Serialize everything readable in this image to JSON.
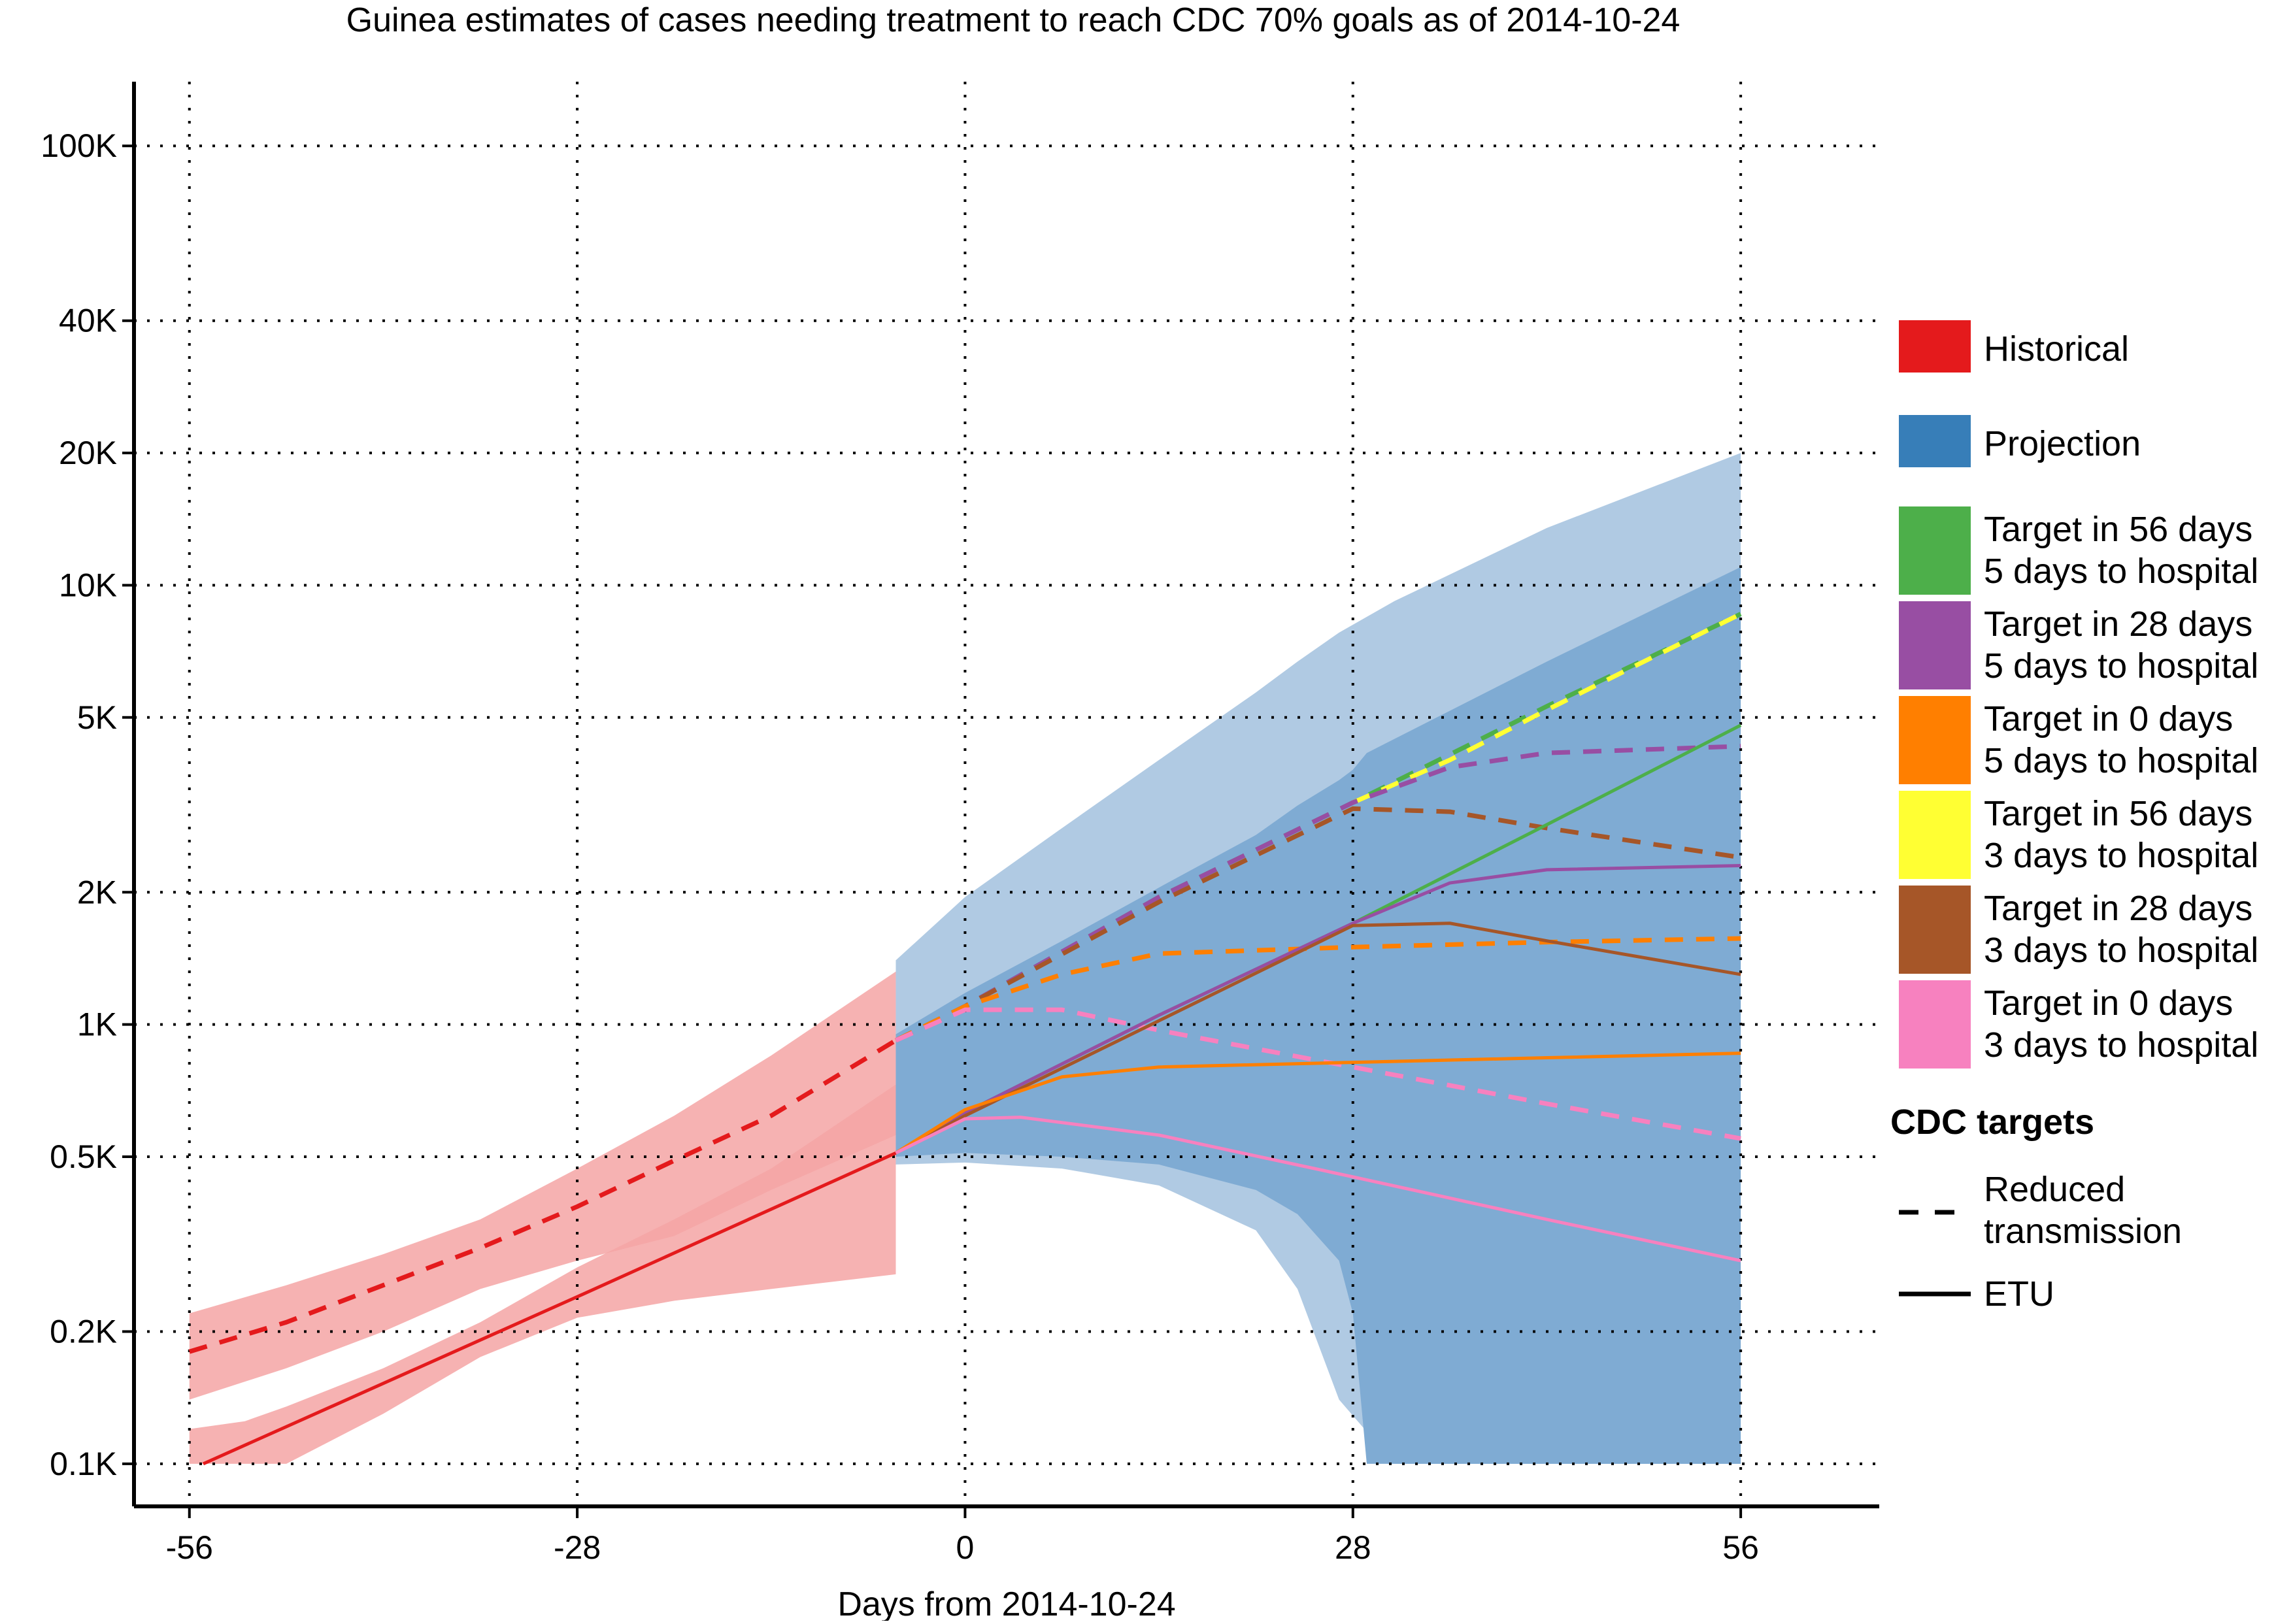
{
  "chart_data": {
    "type": "line",
    "title": "Guinea estimates of cases needing treatment to reach CDC 70% goals as of 2014-10-24",
    "xlabel": "Days from 2014-10-24",
    "ylabel": "",
    "xlim": [
      -60,
      66
    ],
    "ylim": [
      80,
      140000
    ],
    "y_scale": "log",
    "grid": true,
    "x_ticks": [
      {
        "value": -56,
        "label": "-56"
      },
      {
        "value": -28,
        "label": "-28"
      },
      {
        "value": 0,
        "label": "0"
      },
      {
        "value": 28,
        "label": "28"
      },
      {
        "value": 56,
        "label": "56"
      }
    ],
    "y_ticks": [
      {
        "value": 100,
        "label": "0.1K"
      },
      {
        "value": 200,
        "label": "0.2K"
      },
      {
        "value": 500,
        "label": "0.5K"
      },
      {
        "value": 1000,
        "label": "1K"
      },
      {
        "value": 2000,
        "label": "2K"
      },
      {
        "value": 5000,
        "label": "5K"
      },
      {
        "value": 10000,
        "label": "10K"
      },
      {
        "value": 20000,
        "label": "20K"
      },
      {
        "value": 40000,
        "label": "40K"
      },
      {
        "value": 100000,
        "label": "100K"
      }
    ],
    "colors": {
      "historical": "#e41a1c",
      "historical_band": "#f4a4a5",
      "historical_band_inner": "#ee6f70",
      "projection_outer": "#b0cae3",
      "projection_inner": "#7fabd3",
      "green": "#4daf4a",
      "purple": "#984ea3",
      "orange": "#ff7f00",
      "yellow": "#ffff33",
      "brown": "#a65628",
      "pink": "#f781bf"
    },
    "bands": [
      {
        "id": "hist-reduced",
        "color": "#f4a4a5",
        "x": [
          -56,
          -49,
          -42,
          -35,
          -28,
          -21,
          -14,
          -5
        ],
        "lower": [
          140,
          165,
          200,
          250,
          290,
          330,
          420,
          560
        ],
        "upper": [
          220,
          255,
          300,
          360,
          470,
          620,
          850,
          1320
        ]
      },
      {
        "id": "hist-etu",
        "color": "#f4a4a5",
        "x": [
          -56,
          -52,
          -49,
          -42,
          -35,
          -28,
          -21,
          -14,
          -5
        ],
        "lower": [
          100,
          100,
          100,
          130,
          175,
          215,
          235,
          250,
          270
        ],
        "upper": [
          120,
          125,
          135,
          165,
          210,
          280,
          360,
          470,
          730
        ]
      },
      {
        "id": "proj-outer",
        "color": "#b0cae3",
        "x": [
          -5,
          0,
          7,
          14,
          21,
          24,
          27,
          31,
          42,
          56
        ],
        "lower": [
          480,
          485,
          470,
          430,
          340,
          250,
          140,
          100,
          100,
          100
        ],
        "upper": [
          1400,
          1950,
          2800,
          4000,
          5700,
          6700,
          7800,
          9200,
          13500,
          20000
        ]
      },
      {
        "id": "proj-inner",
        "color": "#7fabd3",
        "x": [
          -5,
          0,
          7,
          14,
          21,
          24,
          27,
          28,
          29,
          42,
          56
        ],
        "lower": [
          500,
          510,
          500,
          480,
          420,
          370,
          290,
          220,
          100,
          100,
          100
        ],
        "upper": [
          950,
          1180,
          1550,
          2050,
          2700,
          3150,
          3600,
          3800,
          4150,
          6700,
          11000
        ]
      }
    ],
    "series": [
      {
        "id": "historical-etu",
        "color": "#e41a1c",
        "dash": false,
        "x": [
          -55,
          -28,
          -5
        ],
        "values": [
          100,
          240,
          510
        ]
      },
      {
        "id": "historical-reduced",
        "color": "#e41a1c",
        "dash": true,
        "x": [
          -56,
          -49,
          -42,
          -35,
          -28,
          -21,
          -14,
          -5
        ],
        "values": [
          180,
          210,
          255,
          310,
          385,
          490,
          620,
          920
        ]
      },
      {
        "id": "reduced-56-5",
        "color": "#4daf4a",
        "dash": true,
        "x": [
          -5,
          0,
          14,
          28,
          42,
          56
        ],
        "values": [
          920,
          1100,
          1950,
          3200,
          5300,
          8600
        ]
      },
      {
        "id": "reduced-56-3",
        "color": "#ffff33",
        "dash": true,
        "x": [
          28,
          35,
          42,
          49,
          56
        ],
        "values": [
          3200,
          4000,
          5200,
          6700,
          8600
        ]
      },
      {
        "id": "reduced-28-5",
        "color": "#984ea3",
        "dash": true,
        "x": [
          -5,
          0,
          14,
          28,
          35,
          42,
          56
        ],
        "values": [
          920,
          1100,
          1950,
          3200,
          3850,
          4150,
          4300
        ]
      },
      {
        "id": "reduced-28-3",
        "color": "#a65628",
        "dash": true,
        "x": [
          -5,
          0,
          14,
          28,
          35,
          42,
          56
        ],
        "values": [
          920,
          1100,
          1900,
          3100,
          3050,
          2800,
          2400
        ]
      },
      {
        "id": "reduced-0-5",
        "color": "#ff7f00",
        "dash": true,
        "x": [
          -5,
          0,
          7,
          14,
          28,
          42,
          56
        ],
        "values": [
          920,
          1100,
          1300,
          1450,
          1500,
          1540,
          1570
        ]
      },
      {
        "id": "reduced-0-3",
        "color": "#f781bf",
        "dash": true,
        "x": [
          -5,
          0,
          7,
          14,
          28,
          42,
          56
        ],
        "values": [
          920,
          1080,
          1080,
          970,
          800,
          660,
          550
        ]
      },
      {
        "id": "etu-56-5",
        "color": "#4daf4a",
        "dash": false,
        "x": [
          -5,
          0,
          14,
          28,
          42,
          56
        ],
        "values": [
          510,
          630,
          1050,
          1700,
          2850,
          4800
        ]
      },
      {
        "id": "etu-28-5",
        "color": "#984ea3",
        "dash": false,
        "x": [
          -5,
          0,
          14,
          28,
          35,
          42,
          56
        ],
        "values": [
          510,
          630,
          1050,
          1700,
          2100,
          2250,
          2300
        ]
      },
      {
        "id": "etu-28-3",
        "color": "#a65628",
        "dash": false,
        "x": [
          -5,
          0,
          14,
          28,
          35,
          42,
          56
        ],
        "values": [
          510,
          620,
          1020,
          1680,
          1700,
          1550,
          1300
        ]
      },
      {
        "id": "etu-0-5",
        "color": "#ff7f00",
        "dash": false,
        "x": [
          -5,
          0,
          7,
          14,
          28,
          42,
          56
        ],
        "values": [
          510,
          640,
          760,
          800,
          820,
          840,
          860
        ]
      },
      {
        "id": "etu-0-3",
        "color": "#f781bf",
        "dash": false,
        "x": [
          -5,
          0,
          4,
          14,
          28,
          42,
          56
        ],
        "values": [
          510,
          610,
          615,
          560,
          450,
          360,
          290
        ]
      }
    ],
    "legend": {
      "position": "right",
      "fill_entries": [
        {
          "color": "#e41a1c",
          "lines": [
            "Historical"
          ]
        },
        {
          "color": "#377eb8",
          "lines": [
            "Projection"
          ]
        },
        {
          "color": "#4daf4a",
          "lines": [
            "Target in 56 days",
            "5 days to hospital"
          ]
        },
        {
          "color": "#984ea3",
          "lines": [
            "Target in 28 days",
            "5 days to hospital"
          ]
        },
        {
          "color": "#ff7f00",
          "lines": [
            "Target in 0 days",
            "5 days to hospital"
          ]
        },
        {
          "color": "#ffff33",
          "lines": [
            "Target in 56 days",
            "3 days to hospital"
          ]
        },
        {
          "color": "#a65628",
          "lines": [
            "Target in 28 days",
            "3 days to hospital"
          ]
        },
        {
          "color": "#f781bf",
          "lines": [
            "Target in 0 days",
            "3 days to hospital"
          ]
        }
      ],
      "line_heading": "CDC targets",
      "line_entries": [
        {
          "dash": true,
          "lines": [
            "Reduced",
            "transmission"
          ]
        },
        {
          "dash": false,
          "lines": [
            "ETU"
          ]
        }
      ]
    }
  }
}
